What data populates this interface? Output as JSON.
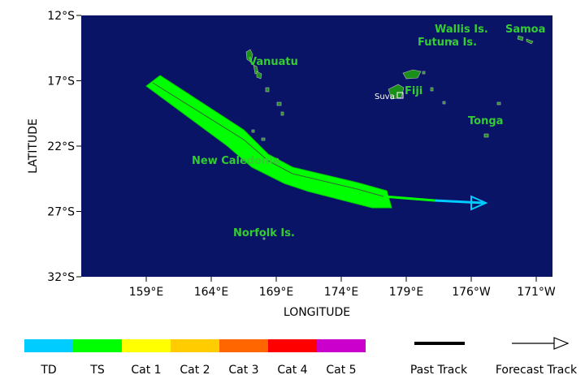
{
  "map": {
    "y_axis_label": "LATITUDE",
    "x_axis_label": "LONGITUDE",
    "lat_ticks": [
      "12°S",
      "17°S",
      "22°S",
      "27°S",
      "32°S"
    ],
    "lon_ticks": [
      "159°E",
      "164°E",
      "169°E",
      "174°E",
      "179°E",
      "176°W",
      "171°W"
    ],
    "places": [
      "Wallis Is.",
      "Futuna Is.",
      "Samoa",
      "Vanuatu",
      "Fiji",
      "Suva",
      "Tonga",
      "New Caledonia",
      "Norfolk Is."
    ]
  },
  "legend": {
    "categories": [
      "TD",
      "TS",
      "Cat 1",
      "Cat 2",
      "Cat 3",
      "Cat 4",
      "Cat 5"
    ],
    "past_track": "Past Track",
    "forecast_track": "Forecast Track"
  }
}
